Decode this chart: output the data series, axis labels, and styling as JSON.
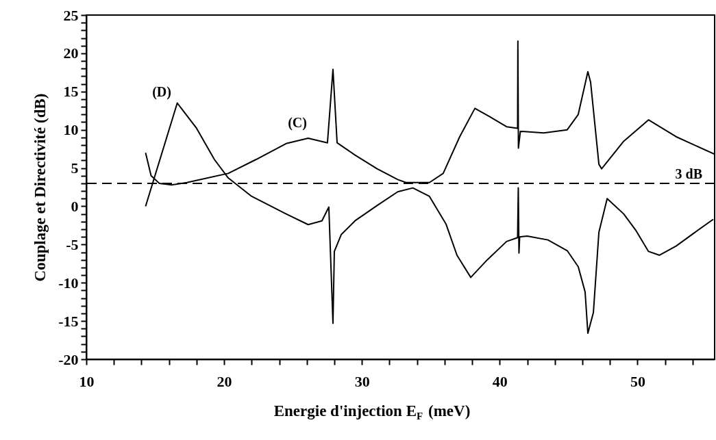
{
  "chart_data": {
    "type": "line",
    "xlabel": "Energie d'injection E$_{F}$ (meV)",
    "ylabel": "Couplage et Directivité (dB)",
    "xlim": [
      10,
      55.6
    ],
    "ylim": [
      -20,
      25
    ],
    "xticks": [
      10,
      {
        "value": 12,
        "label": null
      },
      {
        "value": 14,
        "label": null
      },
      {
        "value": 16,
        "label": null
      },
      {
        "value": 18,
        "label": null
      },
      20,
      {
        "value": 22,
        "label": null
      },
      {
        "value": 24,
        "label": null
      },
      {
        "value": 26,
        "label": null
      },
      {
        "value": 28,
        "label": null
      },
      30,
      {
        "value": 32,
        "label": null
      },
      {
        "value": 34,
        "label": null
      },
      {
        "value": 36,
        "label": null
      },
      {
        "value": 38,
        "label": null
      },
      40,
      {
        "value": 42,
        "label": null
      },
      {
        "value": 44,
        "label": null
      },
      {
        "value": 46,
        "label": null
      },
      {
        "value": 48,
        "label": null
      },
      50,
      {
        "value": 52,
        "label": null
      },
      {
        "value": 54,
        "label": null
      }
    ],
    "yticks": [
      -20,
      {
        "value": -19,
        "label": null
      },
      {
        "value": -18,
        "label": null
      },
      {
        "value": -17,
        "label": null
      },
      {
        "value": -16,
        "label": null
      },
      -15,
      {
        "value": -14,
        "label": null
      },
      {
        "value": -13,
        "label": null
      },
      {
        "value": -12,
        "label": null
      },
      {
        "value": -11,
        "label": null
      },
      -10,
      {
        "value": -9,
        "label": null
      },
      {
        "value": -8,
        "label": null
      },
      {
        "value": -7,
        "label": null
      },
      {
        "value": -6,
        "label": null
      },
      -5,
      {
        "value": -4,
        "label": null
      },
      {
        "value": -3,
        "label": null
      },
      {
        "value": -2,
        "label": null
      },
      {
        "value": -1,
        "label": null
      },
      0,
      {
        "value": 1,
        "label": null
      },
      {
        "value": 2,
        "label": null
      },
      {
        "value": 3,
        "label": null
      },
      {
        "value": 4,
        "label": null
      },
      5,
      {
        "value": 6,
        "label": null
      },
      {
        "value": 7,
        "label": null
      },
      {
        "value": 8,
        "label": null
      },
      {
        "value": 9,
        "label": null
      },
      10,
      {
        "value": 11,
        "label": null
      },
      {
        "value": 12,
        "label": null
      },
      {
        "value": 13,
        "label": null
      },
      {
        "value": 14,
        "label": null
      },
      15,
      {
        "value": 16,
        "label": null
      },
      {
        "value": 17,
        "label": null
      },
      {
        "value": 18,
        "label": null
      },
      {
        "value": 19,
        "label": null
      },
      20,
      {
        "value": 21,
        "label": null
      },
      {
        "value": 22,
        "label": null
      },
      {
        "value": 23,
        "label": null
      },
      {
        "value": 24,
        "label": null
      },
      25
    ],
    "grid": false,
    "marker": "none",
    "line_style": "solid",
    "series": [
      {
        "color": "#000000",
        "x": [
          14.3,
          16.6,
          18.0,
          19.3,
          20.3,
          22.0,
          24.5,
          26.1,
          27.1,
          27.6,
          27.9,
          28.0,
          28.5,
          29.5,
          31.1,
          32.6,
          33.7,
          34.9,
          36.1,
          36.9,
          37.9,
          39.1,
          40.5,
          41.3,
          41.35,
          41.4,
          41.45,
          42.0,
          43.5,
          44.9,
          45.7,
          46.2,
          46.4,
          46.8,
          47.2,
          47.8,
          49.0,
          49.9,
          50.8,
          51.6,
          52.8,
          54.1,
          55.5
        ],
        "values": [
          0.0,
          13.5,
          10.2,
          6.1,
          3.7,
          1.3,
          -1.0,
          -2.4,
          -1.9,
          -0.1,
          -15.3,
          -5.9,
          -3.7,
          -1.9,
          0.1,
          1.9,
          2.4,
          1.3,
          -2.3,
          -6.4,
          -9.3,
          -7.0,
          -4.6,
          -4.1,
          2.4,
          -6.1,
          -4.0,
          -3.9,
          -4.4,
          -5.8,
          -7.9,
          -11.2,
          -16.6,
          -13.9,
          -3.4,
          1.0,
          -1.0,
          -3.2,
          -5.9,
          -6.4,
          -5.2,
          -3.5,
          -1.7
        ]
      },
      {
        "color": "#000000",
        "x": [
          14.3,
          14.7,
          15.3,
          16.2,
          17.3,
          20.3,
          22.3,
          24.5,
          26.1,
          27.5,
          27.9,
          28.2,
          29.5,
          31.1,
          32.6,
          33.2,
          34.9,
          35.9,
          37.1,
          38.2,
          39.2,
          40.5,
          41.3,
          41.32,
          41.36,
          41.5,
          43.2,
          44.9,
          45.7,
          46.4,
          46.6,
          47.2,
          47.4,
          49.0,
          50.8,
          52.8,
          53.9,
          55.6
        ],
        "values": [
          7.0,
          4.0,
          3.0,
          2.8,
          3.1,
          4.3,
          6.1,
          8.2,
          8.9,
          8.3,
          17.9,
          8.3,
          6.7,
          4.9,
          3.5,
          3.1,
          3.1,
          4.3,
          9.1,
          12.8,
          11.8,
          10.4,
          10.2,
          21.6,
          7.6,
          9.8,
          9.6,
          10.0,
          12.0,
          17.6,
          16.2,
          5.5,
          4.9,
          8.5,
          11.3,
          9.1,
          8.2,
          6.8
        ]
      }
    ],
    "ref_lines": [
      {
        "axis": "y",
        "value": 3,
        "label": "3 dB",
        "color": "#000000",
        "line_style": "dashed"
      }
    ],
    "annotations": [
      "(D)",
      "(C)"
    ]
  }
}
